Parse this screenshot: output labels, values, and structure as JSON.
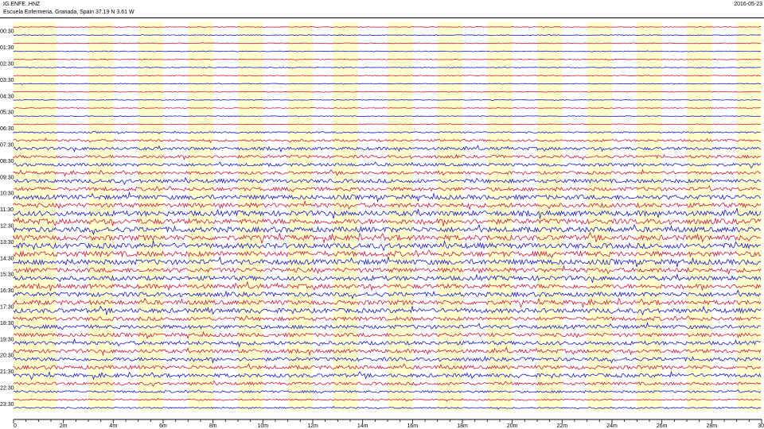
{
  "header": {
    "station_code": "IG.ENFE..HNZ",
    "location_line": "Escuela Enfermeria, Granada, Spain  37.19 N 3.61 W",
    "date": "2016-05-23"
  },
  "colors": {
    "trace_odd": "#1a1ad0",
    "trace_even": "#d01a3c",
    "gap_fill": "#ffffcc",
    "axis": "#000000"
  },
  "chart_data": {
    "type": "line",
    "title": "IG.ENFE..HNZ",
    "subtitle": "Escuela Enfermeria, Granada, Spain  37.19 N 3.61 W",
    "date": "2016-05-23",
    "xlabel": "",
    "ylabel": "",
    "x_unit": "minutes",
    "xlim": [
      0,
      30
    ],
    "x_ticks": [
      "0",
      "2m",
      "4m",
      "6m",
      "8m",
      "10m",
      "12m",
      "14m",
      "16m",
      "18m",
      "20m",
      "22m",
      "24m",
      "26m",
      "28m",
      "30"
    ],
    "row_interval_minutes": 30,
    "row_count": 48,
    "first_row_start": "00:00",
    "hour_labels": [
      "00:30",
      "01:30",
      "02:30",
      "03:30",
      "04:30",
      "05:30",
      "06:30",
      "07:30",
      "08:30",
      "09:30",
      "10:30",
      "11:30",
      "12:30",
      "13:30",
      "14:30",
      "15:30",
      "16:30",
      "17:30",
      "18:30",
      "19:30",
      "20:30",
      "21:30",
      "22:30",
      "23:30"
    ],
    "hour_label_rows": [
      1,
      3,
      5,
      7,
      9,
      11,
      13,
      15,
      17,
      19,
      21,
      23,
      25,
      27,
      29,
      31,
      33,
      35,
      37,
      39,
      41,
      43,
      45,
      47
    ],
    "gap_columns_minutes": [
      [
        0,
        1.7
      ],
      [
        3,
        4
      ],
      [
        5,
        6
      ],
      [
        7,
        8
      ],
      [
        9,
        10
      ],
      [
        11,
        12
      ],
      [
        12.8,
        13.8
      ],
      [
        15,
        16
      ],
      [
        17,
        18
      ],
      [
        19,
        20
      ],
      [
        21,
        22
      ],
      [
        23,
        24
      ],
      [
        25,
        26
      ],
      [
        27,
        28
      ],
      [
        29,
        30
      ]
    ],
    "trace_activity_by_row": [
      1,
      1,
      1,
      1,
      1,
      1,
      1,
      1,
      1,
      1,
      1,
      1,
      1,
      2,
      3,
      4,
      4,
      4,
      4,
      5,
      5,
      6,
      6,
      7,
      7,
      7,
      7,
      7,
      7,
      7,
      6,
      6,
      6,
      6,
      6,
      6,
      5,
      5,
      5,
      5,
      5,
      5,
      5,
      5,
      4,
      3,
      2,
      2
    ],
    "series": [
      {
        "name": "odd-row",
        "color": "#1a1ad0"
      },
      {
        "name": "even-row",
        "color": "#d01a3c"
      }
    ],
    "grid": false
  }
}
